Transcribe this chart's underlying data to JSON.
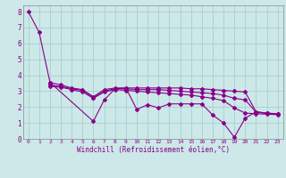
{
  "xlabel": "Windchill (Refroidissement éolien,°C)",
  "background_color": "#cce8e8",
  "grid_color": "#aacece",
  "line_color": "#880088",
  "spine_color": "#888888",
  "xlim": [
    -0.5,
    23.5
  ],
  "ylim": [
    0,
    8.4
  ],
  "xticks": [
    0,
    1,
    2,
    3,
    4,
    5,
    6,
    7,
    8,
    9,
    10,
    11,
    12,
    13,
    14,
    15,
    16,
    17,
    18,
    19,
    20,
    21,
    22,
    23
  ],
  "yticks": [
    0,
    1,
    2,
    3,
    4,
    5,
    6,
    7,
    8
  ],
  "series": [
    {
      "x": [
        0,
        1,
        2,
        6,
        7,
        8,
        9,
        10,
        11,
        12,
        13,
        14,
        15,
        16,
        17,
        18,
        19,
        20,
        21,
        22,
        23
      ],
      "y": [
        8.0,
        6.7,
        3.55,
        1.1,
        2.45,
        3.15,
        3.2,
        1.85,
        2.15,
        1.95,
        2.2,
        2.2,
        2.2,
        2.2,
        1.5,
        1.0,
        0.1,
        1.3,
        1.7,
        1.6,
        1.58
      ]
    },
    {
      "x": [
        2,
        3,
        4,
        5,
        6,
        7,
        8,
        9,
        10,
        11,
        12,
        13,
        14,
        15,
        16,
        17,
        18,
        19,
        20,
        21,
        22,
        23
      ],
      "y": [
        3.55,
        3.4,
        3.2,
        3.1,
        2.65,
        3.1,
        3.2,
        3.2,
        3.2,
        3.2,
        3.2,
        3.2,
        3.2,
        3.15,
        3.15,
        3.1,
        3.05,
        3.0,
        2.95,
        1.7,
        1.62,
        1.58
      ]
    },
    {
      "x": [
        2,
        3,
        4,
        5,
        6,
        7,
        8,
        9,
        10,
        11,
        12,
        13,
        14,
        15,
        16,
        17,
        18,
        19,
        20,
        21,
        22,
        23
      ],
      "y": [
        3.4,
        3.3,
        3.15,
        3.05,
        2.6,
        3.0,
        3.15,
        3.15,
        3.1,
        3.1,
        3.1,
        3.05,
        3.0,
        2.95,
        2.9,
        2.85,
        2.75,
        2.55,
        2.45,
        1.68,
        1.6,
        1.56
      ]
    },
    {
      "x": [
        2,
        3,
        4,
        5,
        6,
        7,
        8,
        9,
        10,
        11,
        12,
        13,
        14,
        15,
        16,
        17,
        18,
        19,
        20,
        21,
        22,
        23
      ],
      "y": [
        3.3,
        3.25,
        3.1,
        2.95,
        2.55,
        2.95,
        3.1,
        3.05,
        3.0,
        2.95,
        2.9,
        2.85,
        2.8,
        2.75,
        2.65,
        2.55,
        2.4,
        1.95,
        1.62,
        1.58,
        1.55,
        1.52
      ]
    }
  ]
}
